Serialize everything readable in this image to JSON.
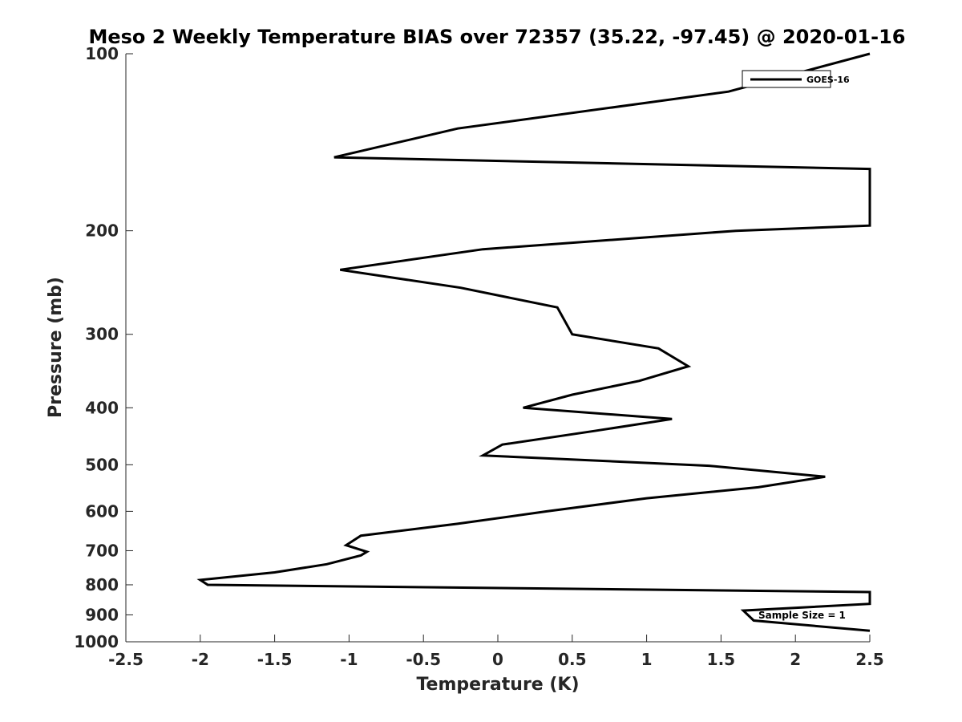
{
  "chart_data": {
    "type": "line",
    "title": "Meso 2 Weekly Temperature BIAS over 72357 (35.22, -97.45) @ 2020-01-16",
    "xlabel": "Temperature (K)",
    "ylabel": "Pressure (mb)",
    "xlim": [
      -2.5,
      2.5
    ],
    "ylim": [
      100,
      1000
    ],
    "yscale": "log",
    "y_reversed": true,
    "xticks": [
      -2.5,
      -2,
      -1.5,
      -1,
      -0.5,
      0,
      0.5,
      1,
      1.5,
      2,
      2.5
    ],
    "xtick_labels": [
      "-2.5",
      "-2",
      "-1.5",
      "-1",
      "-0.5",
      "0",
      "0.5",
      "1",
      "1.5",
      "2",
      "2.5"
    ],
    "yticks": [
      100,
      200,
      300,
      400,
      500,
      600,
      700,
      800,
      900,
      1000
    ],
    "ytick_labels": [
      "100",
      "200",
      "300",
      "400",
      "500",
      "600",
      "700",
      "800",
      "900",
      "1000"
    ],
    "grid": false,
    "legend_position": "top-right",
    "series": [
      {
        "name": "GOES-16",
        "color": "#000000",
        "points": [
          [
            2.5,
            100
          ],
          [
            1.55,
            116
          ],
          [
            -0.27,
            134
          ],
          [
            -1.1,
            150
          ],
          [
            2.5,
            157
          ],
          [
            2.5,
            196
          ],
          [
            1.6,
            200
          ],
          [
            -0.1,
            215
          ],
          [
            -1.06,
            233
          ],
          [
            -0.25,
            250
          ],
          [
            0.4,
            270
          ],
          [
            0.5,
            300
          ],
          [
            1.08,
            317
          ],
          [
            1.28,
            340
          ],
          [
            0.95,
            360
          ],
          [
            0.5,
            380
          ],
          [
            0.17,
            400
          ],
          [
            1.17,
            418
          ],
          [
            0.65,
            438
          ],
          [
            0.03,
            462
          ],
          [
            -0.1,
            482
          ],
          [
            1.42,
            502
          ],
          [
            2.2,
            524
          ],
          [
            1.75,
            546
          ],
          [
            1.0,
            570
          ],
          [
            0.33,
            600
          ],
          [
            -0.27,
            630
          ],
          [
            -0.92,
            660
          ],
          [
            -1.02,
            685
          ],
          [
            -0.88,
            703
          ],
          [
            -0.92,
            713
          ],
          [
            -1.15,
            738
          ],
          [
            -1.5,
            762
          ],
          [
            -2.0,
            785
          ],
          [
            -1.95,
            800
          ],
          [
            2.5,
            823
          ],
          [
            2.5,
            862
          ],
          [
            1.65,
            885
          ],
          [
            1.72,
            920
          ],
          [
            2.5,
            958
          ]
        ]
      }
    ],
    "annotation": "Sample Size = 1"
  }
}
